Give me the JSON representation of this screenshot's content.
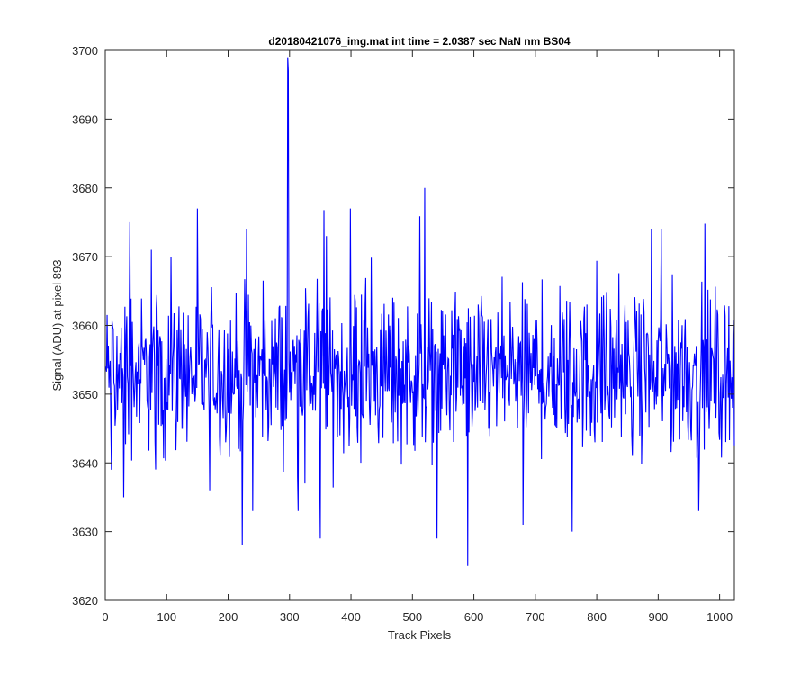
{
  "chart_data": {
    "type": "line",
    "title": "d20180421076_img.mat int time = 2.0387 sec  NaN nm BS04",
    "xlabel": "Track Pixels",
    "ylabel": "Signal (ADU) at pixel 893",
    "xlim": [
      0,
      1024
    ],
    "ylim": [
      3620,
      3700
    ],
    "xticks": [
      0,
      100,
      200,
      300,
      400,
      500,
      600,
      700,
      800,
      900,
      1000
    ],
    "yticks": [
      3620,
      3630,
      3640,
      3650,
      3660,
      3670,
      3680,
      3690,
      3700
    ],
    "grid": false,
    "series": [
      {
        "color": "#0000ff",
        "approximate_mean": 3653,
        "approximate_range": [
          3625,
          3699
        ],
        "x_start": 1,
        "x_end": 1024,
        "notable_points": [
          {
            "x": 10,
            "y": 3639
          },
          {
            "x": 30,
            "y": 3635
          },
          {
            "x": 40,
            "y": 3675
          },
          {
            "x": 75,
            "y": 3671
          },
          {
            "x": 170,
            "y": 3636
          },
          {
            "x": 223,
            "y": 3628
          },
          {
            "x": 230,
            "y": 3674
          },
          {
            "x": 297,
            "y": 3699
          },
          {
            "x": 298,
            "y": 3697
          },
          {
            "x": 325,
            "y": 3637
          },
          {
            "x": 350,
            "y": 3629
          },
          {
            "x": 360,
            "y": 3673
          },
          {
            "x": 520,
            "y": 3680
          },
          {
            "x": 540,
            "y": 3629
          },
          {
            "x": 590,
            "y": 3625
          },
          {
            "x": 680,
            "y": 3631
          },
          {
            "x": 760,
            "y": 3630
          },
          {
            "x": 905,
            "y": 3674
          }
        ]
      }
    ]
  }
}
